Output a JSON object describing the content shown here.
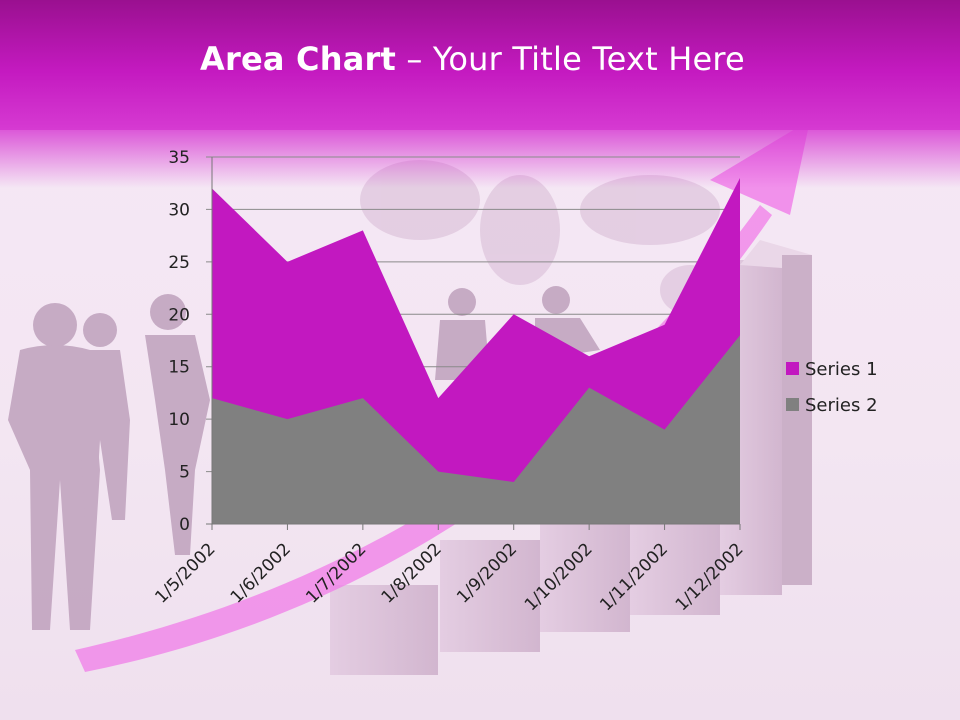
{
  "title": {
    "bold": "Area Chart",
    "rest": " – Your Title Text Here"
  },
  "colors": {
    "series1": "#c218c0",
    "series2": "#808080",
    "header": "#c41ac0",
    "arrow": "#f07ce8"
  },
  "icons": [
    "people-silhouettes",
    "world-map",
    "rising-arrow",
    "3d-bars"
  ],
  "chart_data": {
    "type": "area",
    "x": [
      "1/5/2002",
      "1/6/2002",
      "1/7/2002",
      "1/8/2002",
      "1/9/2002",
      "1/10/2002",
      "1/11/2002",
      "1/12/2002"
    ],
    "series": [
      {
        "name": "Series 1",
        "values": [
          32,
          25,
          28,
          12,
          20,
          16,
          19,
          33
        ]
      },
      {
        "name": "Series 2",
        "values": [
          12,
          10,
          12,
          5,
          4,
          13,
          9,
          18
        ]
      }
    ],
    "ylim": [
      0,
      35
    ],
    "yticks": [
      "0",
      "5",
      "10",
      "15",
      "20",
      "25",
      "30",
      "35"
    ],
    "grid": true,
    "legend": "right",
    "xlabel": "",
    "ylabel": ""
  }
}
